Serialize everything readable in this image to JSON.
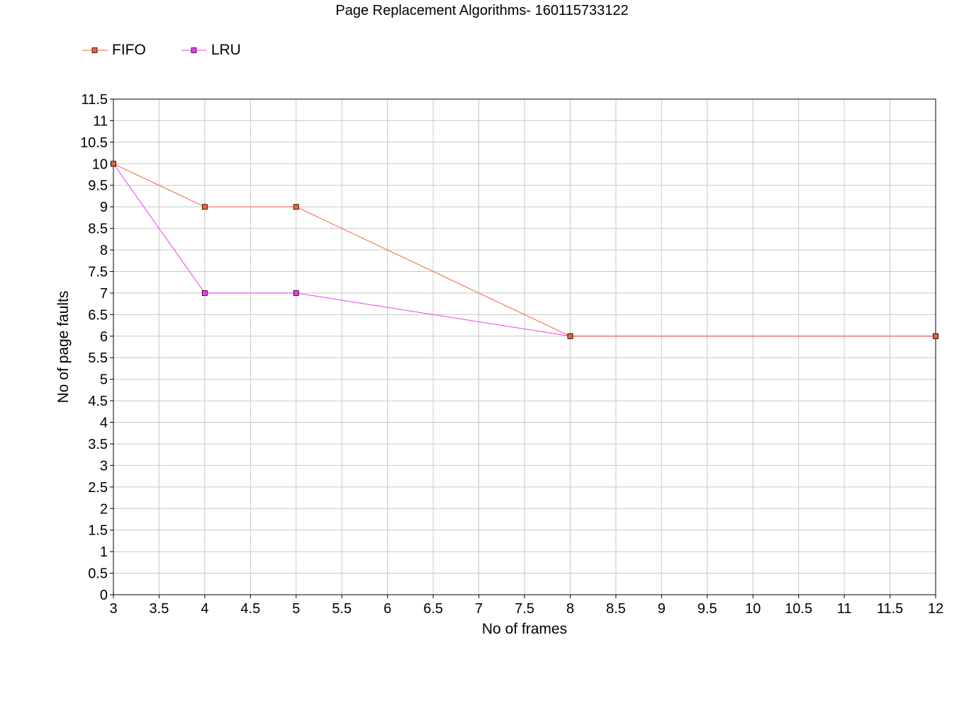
{
  "chart_data": {
    "type": "line",
    "title": "Page Replacement Algorithms- 160115733122",
    "xlabel": "No of frames",
    "ylabel": "No of page faults",
    "xlim": [
      3,
      12
    ],
    "ylim": [
      0,
      11.5
    ],
    "x_ticks": [
      "3",
      "3.5",
      "4",
      "4.5",
      "5",
      "5.5",
      "6",
      "6.5",
      "7",
      "7.5",
      "8",
      "8.5",
      "9",
      "9.5",
      "10",
      "10.5",
      "11",
      "11.5",
      "12"
    ],
    "y_ticks": [
      "0",
      "0.5",
      "1",
      "1.5",
      "2",
      "2.5",
      "3",
      "3.5",
      "4",
      "4.5",
      "5",
      "5.5",
      "6",
      "6.5",
      "7",
      "7.5",
      "8",
      "8.5",
      "9",
      "9.5",
      "10",
      "10.5",
      "11",
      "11.5"
    ],
    "grid": true,
    "legend_position": "top-left",
    "series": [
      {
        "name": "FIFO",
        "color": "#f0643c",
        "marker": "square",
        "x": [
          3,
          4,
          5,
          8,
          12
        ],
        "y": [
          10,
          9,
          9,
          6,
          6
        ]
      },
      {
        "name": "LRU",
        "color": "#f03cf0",
        "marker": "square",
        "x": [
          3,
          4,
          5,
          8,
          12
        ],
        "y": [
          10,
          7,
          7,
          6,
          6
        ]
      }
    ]
  }
}
